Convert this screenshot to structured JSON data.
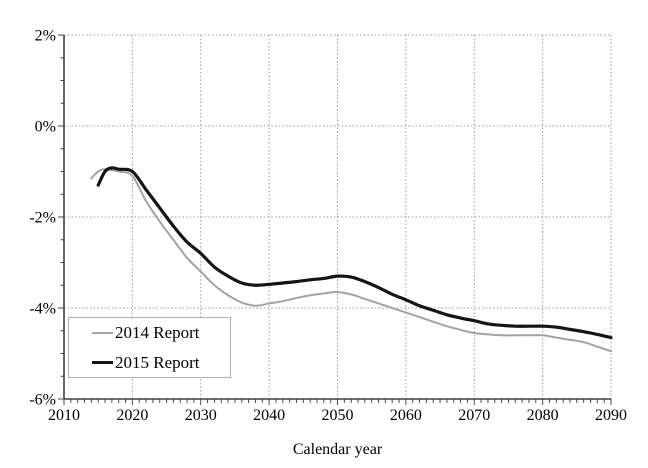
{
  "chart_data": {
    "type": "line",
    "title": "",
    "xlabel": "Calendar year",
    "ylabel": "",
    "xlim": [
      2010,
      2090
    ],
    "ylim": [
      -6,
      2
    ],
    "x_major_ticks": [
      2010,
      2020,
      2030,
      2040,
      2050,
      2060,
      2070,
      2080,
      2090
    ],
    "x_tick_labels": [
      "2010",
      "2020",
      "2030",
      "2040",
      "2050",
      "2060",
      "2070",
      "2080",
      "2090"
    ],
    "x_minor_step": 1,
    "y_major_ticks": [
      2,
      0,
      -2,
      -4,
      -6
    ],
    "y_tick_labels": [
      "2%",
      "0%",
      "-2%",
      "-4%",
      "-6%"
    ],
    "y_minor_step": 0.5,
    "grid": "dotted",
    "grid_color": "#999999",
    "axis_color": "#404040",
    "legend_position": "lower-left",
    "series": [
      {
        "name": "2014 Report",
        "color": "#a3a3a3",
        "width": 2,
        "x": [
          2014,
          2015,
          2016,
          2018,
          2020,
          2022,
          2024,
          2026,
          2028,
          2030,
          2032,
          2034,
          2036,
          2038,
          2040,
          2042,
          2044,
          2046,
          2048,
          2050,
          2052,
          2054,
          2056,
          2058,
          2060,
          2062,
          2064,
          2066,
          2068,
          2070,
          2072,
          2074,
          2076,
          2078,
          2080,
          2082,
          2084,
          2086,
          2088,
          2090
        ],
        "y": [
          -1.15,
          -1.0,
          -0.95,
          -1.0,
          -1.1,
          -1.65,
          -2.1,
          -2.5,
          -2.9,
          -3.2,
          -3.5,
          -3.72,
          -3.88,
          -3.95,
          -3.9,
          -3.85,
          -3.78,
          -3.72,
          -3.68,
          -3.65,
          -3.7,
          -3.8,
          -3.9,
          -4.0,
          -4.1,
          -4.2,
          -4.3,
          -4.4,
          -4.48,
          -4.55,
          -4.58,
          -4.6,
          -4.6,
          -4.6,
          -4.6,
          -4.65,
          -4.7,
          -4.75,
          -4.85,
          -4.95
        ]
      },
      {
        "name": "2015 Report",
        "color": "#141414",
        "width": 3.2,
        "x": [
          2015,
          2016,
          2017,
          2018,
          2020,
          2022,
          2024,
          2026,
          2028,
          2030,
          2032,
          2034,
          2036,
          2038,
          2040,
          2042,
          2044,
          2046,
          2048,
          2050,
          2052,
          2054,
          2056,
          2058,
          2060,
          2062,
          2064,
          2066,
          2068,
          2070,
          2072,
          2074,
          2076,
          2078,
          2080,
          2082,
          2084,
          2086,
          2088,
          2090
        ],
        "y": [
          -1.3,
          -1.0,
          -0.92,
          -0.95,
          -1.0,
          -1.4,
          -1.8,
          -2.2,
          -2.55,
          -2.8,
          -3.1,
          -3.3,
          -3.45,
          -3.5,
          -3.48,
          -3.45,
          -3.42,
          -3.38,
          -3.35,
          -3.3,
          -3.32,
          -3.42,
          -3.55,
          -3.7,
          -3.82,
          -3.95,
          -4.05,
          -4.15,
          -4.22,
          -4.28,
          -4.35,
          -4.38,
          -4.4,
          -4.4,
          -4.4,
          -4.42,
          -4.47,
          -4.52,
          -4.58,
          -4.65
        ]
      }
    ]
  }
}
